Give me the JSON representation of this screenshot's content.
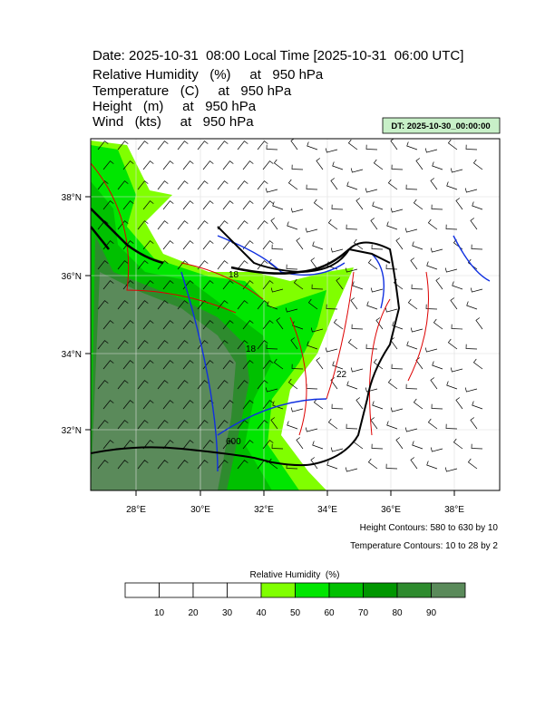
{
  "header": {
    "title": "Date: 2025-10-31  08:00 Local Time [2025-10-31  06:00 UTC]",
    "lines": [
      "Relative Humidity   (%)     at   950 hPa",
      "Temperature   (C)     at   950 hPa",
      "Height   (m)     at   950 hPa",
      "Wind   (kts)     at   950 hPa"
    ],
    "dt": "DT: 2025-10-30_00:00:00"
  },
  "map": {
    "lat_labels": [
      "38°N",
      "36°N",
      "34°N",
      "32°N"
    ],
    "lon_labels": [
      "28°E",
      "30°E",
      "32°E",
      "34°E",
      "36°E",
      "38°E"
    ],
    "contour_labels": [
      "18",
      "18",
      "22",
      "600"
    ]
  },
  "notes": {
    "height": "Height Contours: 580 to 630 by 10",
    "temperature": "Temperature Contours: 10 to 28 by 2"
  },
  "colorbar": {
    "title": "Relative Humidity  (%)",
    "labels": [
      "10",
      "20",
      "30",
      "40",
      "50",
      "60",
      "70",
      "80",
      "90"
    ],
    "colors": [
      "#ffffff",
      "#ffffff",
      "#ffffff",
      "#ffffff",
      "#80ff00",
      "#00e600",
      "#00c000",
      "#009600",
      "#2e8b2e",
      "#5a8a5a"
    ]
  }
}
